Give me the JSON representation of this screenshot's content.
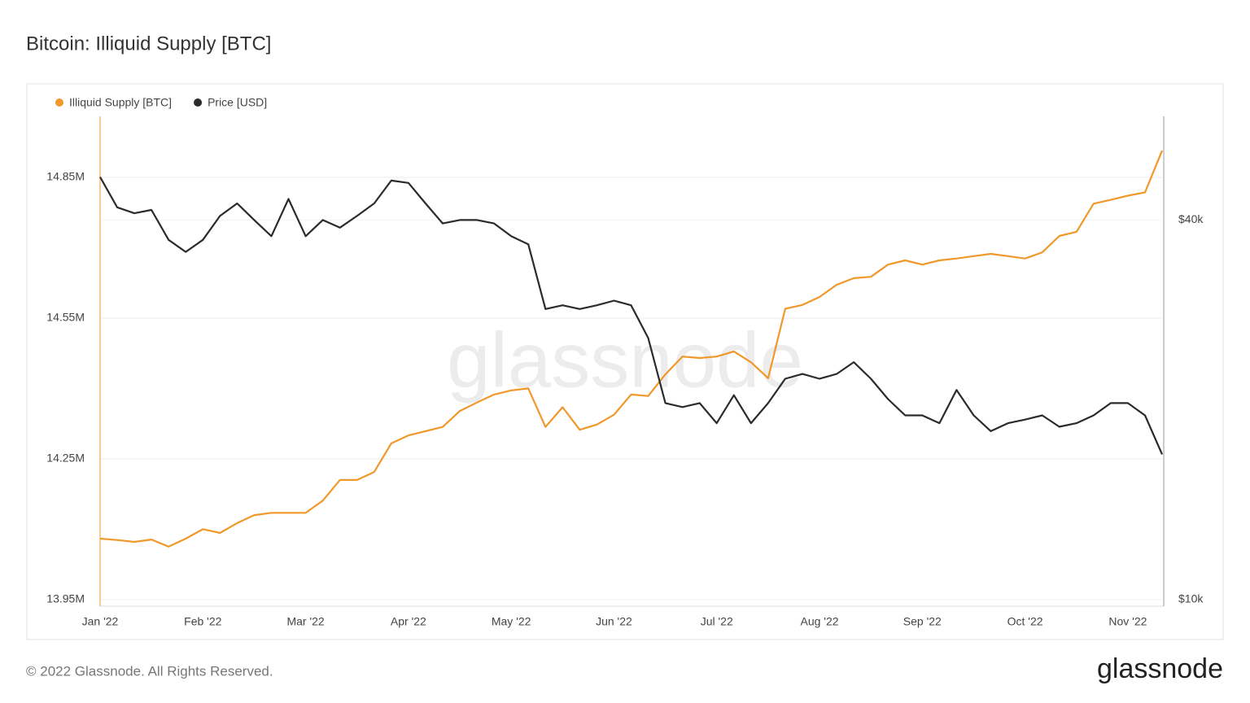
{
  "chart_data": {
    "type": "line",
    "title": "Bitcoin: Illiquid Supply [BTC]",
    "categories": [
      "Jan '22",
      null,
      null,
      null,
      null,
      null,
      "Feb '22",
      null,
      null,
      null,
      null,
      null,
      "Mar '22",
      null,
      null,
      null,
      null,
      null,
      "Apr '22",
      null,
      null,
      null,
      null,
      null,
      "May '22",
      null,
      null,
      null,
      null,
      null,
      "Jun '22",
      null,
      null,
      null,
      null,
      null,
      "Jul '22",
      null,
      null,
      null,
      null,
      null,
      "Aug '22",
      null,
      null,
      null,
      null,
      null,
      "Sep '22",
      null,
      null,
      null,
      null,
      null,
      "Oct '22",
      null,
      null,
      null,
      null,
      null,
      "Nov '22",
      null,
      null
    ],
    "series": [
      {
        "name": "Illiquid Supply [BTC]",
        "color": "#f0982a",
        "axis": "y",
        "values": [
          14080000,
          14077000,
          14073000,
          14078000,
          14063000,
          14080000,
          14100000,
          14092000,
          14113000,
          14130000,
          14135000,
          14135000,
          14135000,
          14161000,
          14205000,
          14205000,
          14222000,
          14283000,
          14300000,
          14309000,
          14318000,
          14352000,
          14370000,
          14387000,
          14396000,
          14400000,
          14318000,
          14360000,
          14312000,
          14323000,
          14344000,
          14387000,
          14384000,
          14430000,
          14468000,
          14465000,
          14468000,
          14479000,
          14456000,
          14422000,
          14570000,
          14578000,
          14595000,
          14621000,
          14635000,
          14638000,
          14664000,
          14673000,
          14664000,
          14673000,
          14677000,
          14682000,
          14687000,
          14682000,
          14677000,
          14690000,
          14725000,
          14734000,
          14794000,
          14802000,
          14811000,
          14818000,
          14907000
        ]
      },
      {
        "name": "Price [USD]",
        "color": "#2b2b2b",
        "axis": "y2",
        "values": [
          46800,
          41900,
          41000,
          41500,
          37200,
          35600,
          37200,
          40600,
          42500,
          40000,
          37700,
          43200,
          37700,
          40000,
          38900,
          40600,
          42500,
          46200,
          45800,
          42500,
          39500,
          40000,
          40000,
          39500,
          37700,
          36600,
          28900,
          29300,
          28900,
          29300,
          29800,
          29300,
          26000,
          20500,
          20200,
          20500,
          19050,
          21100,
          19050,
          20500,
          22400,
          22800,
          22400,
          22800,
          23800,
          22400,
          20800,
          19600,
          19600,
          19050,
          21500,
          19600,
          18500,
          19050,
          19300,
          19600,
          18800,
          19050,
          19600,
          20500,
          20500,
          19600,
          17000
        ]
      }
    ],
    "ylim": [
      13936000,
      14980000
    ],
    "yticks": [
      {
        "value": 13950000,
        "label": "13.95M"
      },
      {
        "value": 14250000,
        "label": "14.25M"
      },
      {
        "value": 14550000,
        "label": "14.55M"
      },
      {
        "value": 14850000,
        "label": "14.85M"
      }
    ],
    "y2lim": [
      9765,
      58400
    ],
    "y2ticks": [
      {
        "value": 10000,
        "label": "$10k"
      },
      {
        "value": 40000,
        "label": "$40k"
      }
    ],
    "y2log": true,
    "grid": true,
    "legend": "top-left"
  },
  "watermark": "glassnode",
  "footer": "© 2022 Glassnode. All Rights Reserved.",
  "logo": "glassnode"
}
